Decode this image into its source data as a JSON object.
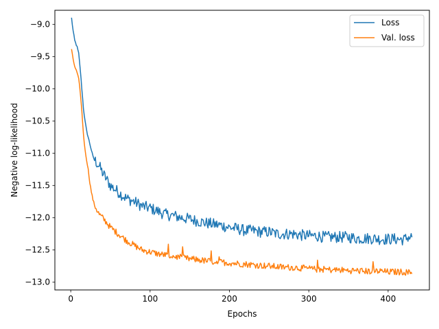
{
  "chart_data": {
    "type": "line",
    "title": "",
    "xlabel": "Epochs",
    "ylabel": "Negative log-likelihood",
    "xlim": [
      -20,
      452
    ],
    "ylim": [
      -13.12,
      -8.78
    ],
    "xticks": [
      0,
      100,
      200,
      300,
      400
    ],
    "xtick_labels": [
      "0",
      "100",
      "200",
      "300",
      "400"
    ],
    "yticks": [
      -9.0,
      -9.5,
      -10.0,
      -10.5,
      -11.0,
      -11.5,
      -12.0,
      -12.5,
      -13.0
    ],
    "ytick_labels": [
      "−9.0",
      "−9.5",
      "−10.0",
      "−10.5",
      "−11.0",
      "−11.5",
      "−12.0",
      "−12.5",
      "−13.0"
    ],
    "grid": false,
    "legend": "top-right",
    "series": [
      {
        "name": "Loss",
        "color": "#1f77b4",
        "x": [
          1,
          3,
          5,
          8,
          10,
          12,
          14,
          16,
          18,
          20,
          22,
          24,
          26,
          28,
          30,
          33,
          36,
          40,
          45,
          50,
          60,
          70,
          80,
          90,
          100,
          110,
          120,
          130,
          140,
          150,
          160,
          170,
          180,
          190,
          200,
          210,
          220,
          230,
          240,
          250,
          260,
          270,
          280,
          290,
          300,
          310,
          320,
          330,
          340,
          350,
          360,
          370,
          380,
          390,
          400,
          410,
          420,
          425,
          430
        ],
        "y": [
          -8.9,
          -9.1,
          -9.25,
          -9.35,
          -9.45,
          -9.7,
          -10.0,
          -10.3,
          -10.5,
          -10.65,
          -10.75,
          -10.85,
          -10.95,
          -11.05,
          -11.1,
          -11.15,
          -11.2,
          -11.3,
          -11.4,
          -11.5,
          -11.6,
          -11.7,
          -11.75,
          -11.82,
          -11.85,
          -11.9,
          -11.95,
          -11.97,
          -12.0,
          -12.02,
          -12.05,
          -12.08,
          -12.1,
          -12.12,
          -12.15,
          -12.17,
          -12.2,
          -12.2,
          -12.22,
          -12.22,
          -12.25,
          -12.25,
          -12.25,
          -12.27,
          -12.28,
          -12.28,
          -12.3,
          -12.3,
          -12.3,
          -12.3,
          -12.32,
          -12.32,
          -12.32,
          -12.33,
          -12.33,
          -12.33,
          -12.34,
          -12.3,
          -12.3
        ]
      },
      {
        "name": "Val. loss",
        "color": "#ff7f0e",
        "x": [
          1,
          3,
          5,
          8,
          10,
          12,
          14,
          16,
          18,
          20,
          22,
          24,
          26,
          28,
          30,
          33,
          36,
          40,
          45,
          50,
          60,
          70,
          80,
          90,
          100,
          110,
          120,
          130,
          140,
          150,
          160,
          170,
          180,
          190,
          200,
          210,
          220,
          230,
          240,
          250,
          260,
          270,
          280,
          290,
          300,
          310,
          320,
          330,
          340,
          350,
          360,
          370,
          380,
          390,
          400,
          410,
          420,
          425,
          430
        ],
        "y": [
          -9.38,
          -9.55,
          -9.65,
          -9.75,
          -9.85,
          -10.05,
          -10.35,
          -10.7,
          -10.95,
          -11.1,
          -11.25,
          -11.45,
          -11.6,
          -11.72,
          -11.8,
          -11.88,
          -11.95,
          -12.0,
          -12.07,
          -12.15,
          -12.25,
          -12.35,
          -12.43,
          -12.5,
          -12.53,
          -12.56,
          -12.58,
          -12.6,
          -12.62,
          -12.64,
          -12.65,
          -12.67,
          -12.68,
          -12.69,
          -12.7,
          -12.71,
          -12.72,
          -12.73,
          -12.74,
          -12.75,
          -12.76,
          -12.77,
          -12.77,
          -12.78,
          -12.79,
          -12.8,
          -12.8,
          -12.81,
          -12.81,
          -12.82,
          -12.82,
          -12.83,
          -12.83,
          -12.83,
          -12.84,
          -12.84,
          -12.84,
          -12.85,
          -12.85
        ]
      }
    ]
  }
}
